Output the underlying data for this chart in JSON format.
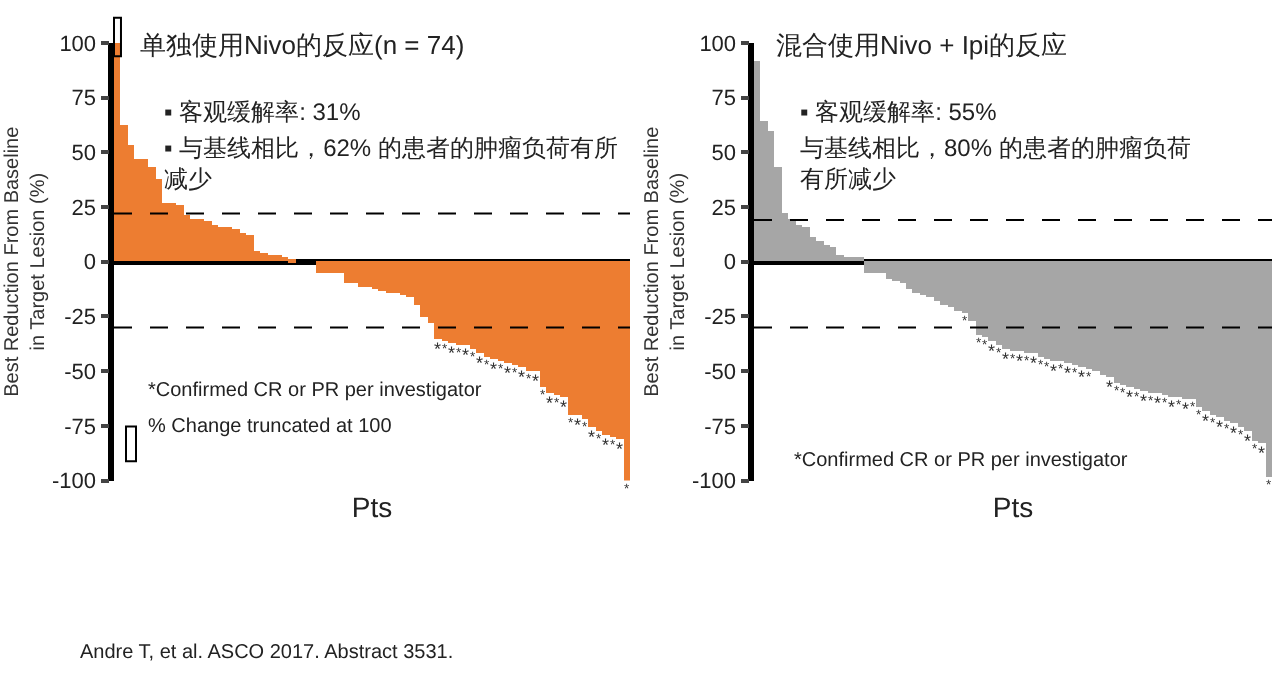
{
  "chart_data": [
    {
      "type": "bar",
      "title": "单独使用Nivo的反应(n = 74)",
      "ylabel": "Best Reduction From Baseline\nin Target Lesion (%)",
      "xlabel": "Pts",
      "color": "#ed7d31",
      "categories": [
        null,
        null,
        null,
        null,
        null,
        null,
        null,
        null,
        null,
        null,
        null,
        null,
        null,
        null,
        null,
        null,
        null,
        null,
        null,
        null,
        null,
        null,
        null,
        null,
        null,
        null,
        null,
        null,
        null,
        null,
        null,
        null,
        null,
        null,
        null,
        null,
        null,
        null,
        null,
        null,
        null,
        null,
        null,
        null,
        null,
        null,
        null,
        null,
        null,
        null,
        null,
        null,
        null,
        null,
        null,
        null,
        null,
        null,
        null,
        null,
        null,
        null,
        null,
        null,
        null,
        null,
        null,
        null,
        null,
        null,
        null,
        null,
        null,
        null
      ],
      "values": [
        100,
        63,
        53,
        47,
        47,
        43,
        38,
        27,
        27,
        26,
        21,
        20,
        20,
        19,
        17,
        16,
        16,
        15,
        13,
        12,
        5,
        4,
        3,
        3,
        2,
        1,
        0,
        0,
        0,
        -5,
        -5,
        -5,
        -5,
        -10,
        -10,
        -11,
        -11,
        -12,
        -13,
        -14,
        -14,
        -15,
        -16,
        -20,
        -25,
        -28,
        -35,
        -36,
        -37,
        -38,
        -38,
        -40,
        -42,
        -43,
        -44,
        -45,
        -46,
        -47,
        -48,
        -50,
        -50,
        -57,
        -60,
        -61,
        -62,
        -70,
        -70,
        -72,
        -75,
        -77,
        -79,
        -80,
        -81,
        -100
      ],
      "value_labels": [
        null,
        null,
        null,
        null,
        null,
        null,
        null,
        null,
        null,
        null,
        null,
        null,
        null,
        null,
        null,
        null,
        null,
        null,
        null,
        null,
        null,
        null,
        null,
        null,
        null,
        null,
        null,
        null,
        null,
        null,
        null,
        null,
        null,
        null,
        null,
        null,
        null,
        null,
        null,
        null,
        null,
        null,
        null,
        null,
        null,
        null,
        "*",
        "*",
        "*",
        "*",
        "*",
        "*",
        "*",
        "*",
        "*",
        "*",
        "*",
        "*",
        "*",
        "*",
        "*",
        "*",
        "*",
        "*",
        "*",
        "*",
        "*",
        "*",
        "*",
        "*",
        "*",
        "*",
        "*",
        "*"
      ],
      "ylim": [
        -100,
        100
      ],
      "yticks": [
        -100,
        -75,
        -50,
        -25,
        0,
        25,
        50,
        75,
        100
      ],
      "ref_lines": [
        {
          "axis": "y",
          "value": 22,
          "line_style": "dashed",
          "color": "#000000"
        },
        {
          "axis": "y",
          "value": -30,
          "line_style": "dashed",
          "color": "#000000"
        }
      ],
      "annotations": [
        "▪ 客观缓解率: 31%",
        "▪ 与基线相比，62% 的患者的肿瘤负荷有所减少",
        "*Confirmed CR or PR per investigator",
        "% Change truncated at 100",
        "Andre T, et al. ASCO 2017. Abstract 3531."
      ]
    },
    {
      "type": "bar",
      "title": "混合使用Nivo + Ipi的反应",
      "ylabel": "Best Reduction From Baseline\nin Target Lesion (%)",
      "xlabel": "Pts",
      "color": "#a6a6a6",
      "categories": [
        null,
        null,
        null,
        null,
        null,
        null,
        null,
        null,
        null,
        null,
        null,
        null,
        null,
        null,
        null,
        null,
        null,
        null,
        null,
        null,
        null,
        null,
        null,
        null,
        null,
        null,
        null,
        null,
        null,
        null,
        null,
        null,
        null,
        null,
        null,
        null,
        null,
        null,
        null,
        null,
        null,
        null,
        null,
        null,
        null,
        null,
        null,
        null,
        null,
        null,
        null,
        null,
        null,
        null,
        null,
        null,
        null,
        null,
        null,
        null,
        null,
        null,
        null,
        null,
        null,
        null,
        null,
        null,
        null,
        null,
        null,
        null,
        null,
        null,
        null
      ],
      "values": [
        92,
        64,
        60,
        43,
        22,
        20,
        17,
        16,
        11,
        10,
        8,
        7,
        3,
        2,
        2,
        2,
        -5,
        -5,
        -5,
        -8,
        -9,
        -10,
        -12,
        -14,
        -15,
        -16,
        -18,
        -20,
        -21,
        -22,
        -23,
        -27,
        -33,
        -34,
        -36,
        -38,
        -40,
        -41,
        -41,
        -42,
        -42,
        -43,
        -44,
        -45,
        -45,
        -46,
        -47,
        -48,
        -49,
        -50,
        -52,
        -53,
        -55,
        -56,
        -57,
        -58,
        -59,
        -60,
        -60,
        -61,
        -62,
        -62,
        -63,
        -63,
        -66,
        -68,
        -70,
        -71,
        -73,
        -74,
        -75,
        -77,
        -82,
        -83,
        -98
      ],
      "value_labels": [
        null,
        null,
        null,
        null,
        null,
        null,
        null,
        null,
        null,
        null,
        null,
        null,
        null,
        null,
        null,
        null,
        null,
        null,
        null,
        null,
        null,
        null,
        null,
        null,
        null,
        null,
        null,
        null,
        null,
        null,
        "*",
        null,
        "*",
        "*",
        "*",
        "*",
        "*",
        "*",
        "*",
        "*",
        "*",
        "*",
        "*",
        "*",
        "*",
        "*",
        "*",
        "*",
        "*",
        null,
        null,
        "*",
        "*",
        "*",
        "*",
        "*",
        "*",
        "*",
        "*",
        "*",
        "*",
        "*",
        "*",
        "*",
        "*",
        "*",
        "*",
        "*",
        "*",
        "*",
        "*",
        "*",
        "*",
        "*",
        "*"
      ],
      "ylim": [
        -100,
        100
      ],
      "yticks": [
        -100,
        -75,
        -50,
        -25,
        0,
        25,
        50,
        75,
        100
      ],
      "ref_lines": [
        {
          "axis": "y",
          "value": 19,
          "line_style": "dashed",
          "color": "#000000"
        },
        {
          "axis": "y",
          "value": -30,
          "line_style": "dashed",
          "color": "#000000"
        }
      ],
      "annotations": [
        "▪ 客观缓解率: 55%",
        "与基线相比，80% 的患者的肿瘤负荷有所减少",
        "*Confirmed CR or PR per investigator"
      ]
    }
  ]
}
